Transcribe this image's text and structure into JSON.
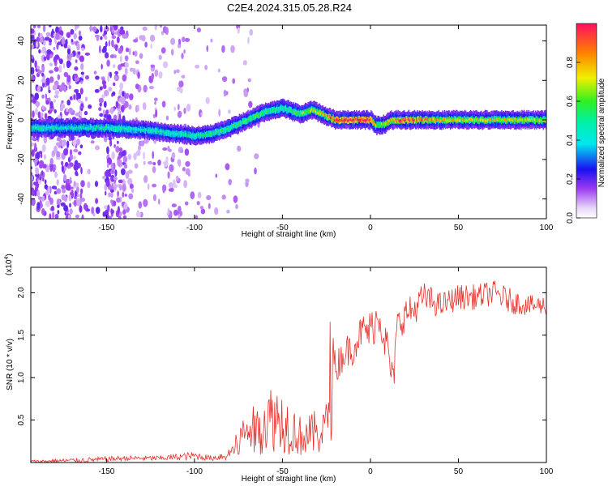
{
  "title": "C2E4.2024.315.05.28.R24",
  "chart_data": [
    {
      "type": "heatmap",
      "xlabel": "Height of straight line (km)",
      "ylabel": "Frequency (Hz)",
      "xlim": [
        -193,
        100
      ],
      "ylim": [
        -50,
        48
      ],
      "xticks": [
        -150,
        -100,
        -50,
        0,
        50,
        100
      ],
      "yticks": [
        -40,
        -20,
        0,
        20,
        40
      ],
      "colorbar": {
        "label": "Normalized spectral amplitude",
        "range": [
          0,
          1
        ],
        "ticks": [
          0.0,
          0.2,
          0.4,
          0.6,
          0.8
        ]
      },
      "ridge": {
        "x": [
          -193,
          -170,
          -150,
          -130,
          -110,
          -100,
          -90,
          -80,
          -70,
          -60,
          -50,
          -40,
          -33,
          -28,
          -20,
          -10,
          0,
          3,
          8,
          12,
          20,
          40,
          60,
          80,
          100
        ],
        "y": [
          -4,
          -4,
          -4,
          -5,
          -7,
          -8,
          -7,
          -4,
          0,
          4,
          6,
          3,
          5,
          3,
          0,
          0,
          0,
          -3,
          -2,
          0,
          0,
          0,
          0,
          0,
          0
        ],
        "amplitude": [
          0.5,
          0.45,
          0.5,
          0.45,
          0.5,
          0.5,
          0.55,
          0.55,
          0.6,
          0.55,
          0.5,
          0.6,
          0.7,
          0.75,
          0.95,
          1.0,
          0.95,
          0.6,
          0.7,
          0.8,
          0.95,
          0.75,
          0.7,
          0.7,
          0.7
        ]
      }
    },
    {
      "type": "line",
      "xlabel": "Height of straight line (km)",
      "ylabel": "SNR (10 * v/v)",
      "yscale_label": "(x10",
      "yscale_exp": "4",
      "xlim": [
        -193,
        100
      ],
      "ylim": [
        0,
        2.3
      ],
      "xticks": [
        -150,
        -100,
        -50,
        0,
        50,
        100
      ],
      "yticks": [
        0.5,
        1.0,
        1.5,
        2.0
      ],
      "color": "#e8302a",
      "series": [
        {
          "x": [
            -193,
            -160,
            -140,
            -120,
            -100,
            -90,
            -80,
            -75,
            -70,
            -65,
            -60,
            -55,
            -50,
            -45,
            -40,
            -35,
            -30,
            -25,
            -22,
            -20,
            -15,
            -10,
            -5,
            0,
            5,
            10,
            13,
            15,
            20,
            25,
            30,
            40,
            50,
            60,
            70,
            80,
            90,
            100
          ],
          "y": [
            0.01,
            0.03,
            0.05,
            0.05,
            0.08,
            0.05,
            0.1,
            0.25,
            0.45,
            0.4,
            0.55,
            0.6,
            0.55,
            0.45,
            0.35,
            0.35,
            0.4,
            0.45,
            1.45,
            1.1,
            1.3,
            1.35,
            1.55,
            1.55,
            1.75,
            1.3,
            0.9,
            1.6,
            1.75,
            1.8,
            1.95,
            1.85,
            1.95,
            1.95,
            2.0,
            1.9,
            1.85,
            1.85
          ],
          "amp": [
            0.02,
            0.03,
            0.03,
            0.03,
            0.05,
            0.03,
            0.08,
            0.2,
            0.3,
            0.25,
            0.3,
            0.3,
            0.3,
            0.25,
            0.2,
            0.22,
            0.25,
            0.25,
            0.25,
            0.2,
            0.2,
            0.2,
            0.2,
            0.25,
            0.25,
            0.25,
            0.2,
            0.2,
            0.2,
            0.18,
            0.18,
            0.15,
            0.15,
            0.15,
            0.15,
            0.15,
            0.12,
            0.12
          ]
        }
      ]
    }
  ]
}
